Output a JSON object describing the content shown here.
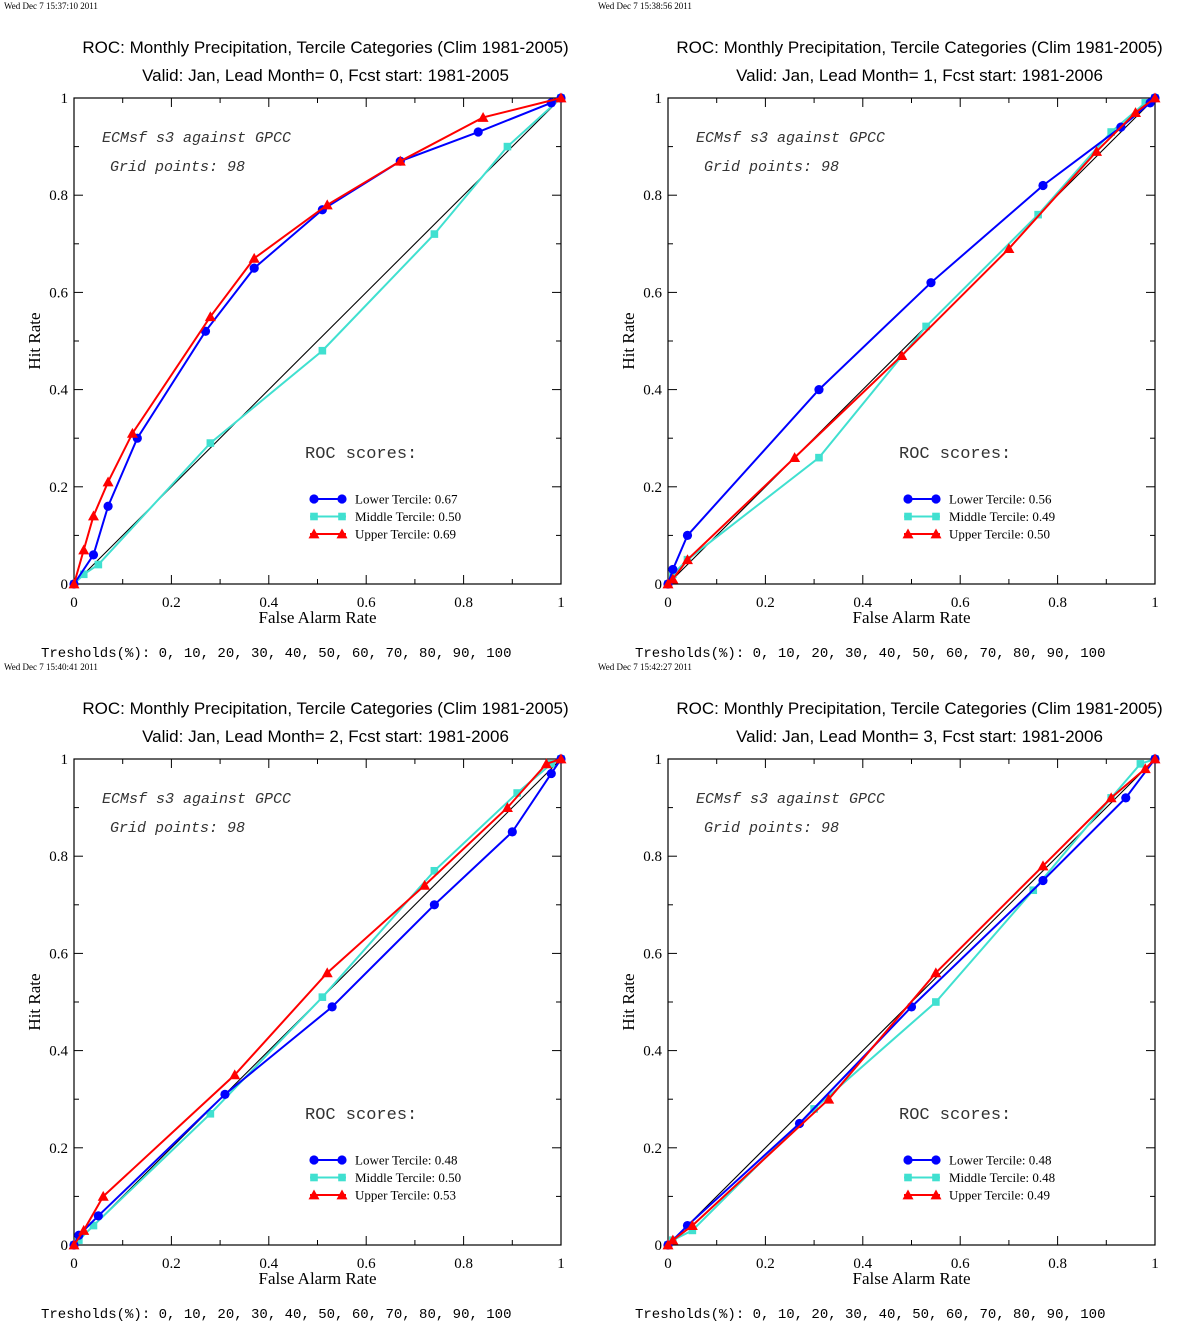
{
  "common": {
    "xlabel": "False Alarm Rate",
    "ylabel": "Hit Rate",
    "note_line1": "ECMsf s3 against GPCC",
    "note_line2": "Grid points:   98",
    "roc_heading": "ROC scores:",
    "thresholds": "Tresholds(%): 0, 10, 20, 30, 40, 50, 60, 70, 80, 90, 100",
    "xticks": [
      "0",
      "0.2",
      "0.4",
      "0.6",
      "0.8",
      "1"
    ],
    "yticks": [
      "0",
      "0.2",
      "0.4",
      "0.6",
      "0.8",
      "1"
    ],
    "colors": {
      "lower": "#0000ff",
      "middle": "#40e0d0",
      "upper": "#ff0000",
      "diagonal": "#000000"
    },
    "markers": {
      "lower": "circle",
      "middle": "square",
      "upper": "triangle"
    }
  },
  "chart_data": [
    {
      "type": "line",
      "timestamp": "Wed Dec  7 15:37:10 2011",
      "title": "ROC: Monthly Precipitation, Tercile Categories (Clim 1981-2005)",
      "subtitle": "Valid: Jan, Lead Month= 0, Fcst start: 1981-2005",
      "xlabel": "False Alarm Rate",
      "ylabel": "Hit Rate",
      "xlim": [
        0,
        1
      ],
      "ylim": [
        0,
        1
      ],
      "legend": [
        {
          "label": "Lower Tercile: 0.67",
          "key": "lower"
        },
        {
          "label": "Middle Tercile: 0.50",
          "key": "middle"
        },
        {
          "label": "Upper Tercile: 0.69",
          "key": "upper"
        }
      ],
      "series": [
        {
          "key": "lower",
          "points": [
            [
              0,
              0
            ],
            [
              0.04,
              0.06
            ],
            [
              0.07,
              0.16
            ],
            [
              0.13,
              0.3
            ],
            [
              0.27,
              0.52
            ],
            [
              0.37,
              0.65
            ],
            [
              0.51,
              0.77
            ],
            [
              0.67,
              0.87
            ],
            [
              0.83,
              0.93
            ],
            [
              0.98,
              0.99
            ],
            [
              1,
              1
            ]
          ]
        },
        {
          "key": "middle",
          "points": [
            [
              0,
              0
            ],
            [
              0.02,
              0.02
            ],
            [
              0.05,
              0.04
            ],
            [
              0.28,
              0.29
            ],
            [
              0.51,
              0.48
            ],
            [
              0.74,
              0.72
            ],
            [
              0.89,
              0.9
            ],
            [
              1,
              1
            ]
          ]
        },
        {
          "key": "upper",
          "points": [
            [
              0,
              0
            ],
            [
              0.02,
              0.07
            ],
            [
              0.04,
              0.14
            ],
            [
              0.07,
              0.21
            ],
            [
              0.12,
              0.31
            ],
            [
              0.28,
              0.55
            ],
            [
              0.37,
              0.67
            ],
            [
              0.52,
              0.78
            ],
            [
              0.67,
              0.87
            ],
            [
              0.84,
              0.96
            ],
            [
              1,
              1
            ]
          ]
        }
      ]
    },
    {
      "type": "line",
      "timestamp": "Wed Dec  7 15:38:56 2011",
      "title": "ROC: Monthly Precipitation, Tercile Categories (Clim 1981-2005)",
      "subtitle": "Valid: Jan, Lead Month= 1, Fcst start: 1981-2006",
      "xlabel": "False Alarm Rate",
      "ylabel": "Hit Rate",
      "xlim": [
        0,
        1
      ],
      "ylim": [
        0,
        1
      ],
      "legend": [
        {
          "label": "Lower Tercile: 0.56",
          "key": "lower"
        },
        {
          "label": "Middle Tercile: 0.49",
          "key": "middle"
        },
        {
          "label": "Upper Tercile: 0.50",
          "key": "upper"
        }
      ],
      "series": [
        {
          "key": "lower",
          "points": [
            [
              0,
              0
            ],
            [
              0.01,
              0.03
            ],
            [
              0.04,
              0.1
            ],
            [
              0.31,
              0.4
            ],
            [
              0.54,
              0.62
            ],
            [
              0.77,
              0.82
            ],
            [
              0.93,
              0.94
            ],
            [
              0.99,
              0.99
            ],
            [
              1,
              1
            ]
          ]
        },
        {
          "key": "middle",
          "points": [
            [
              0,
              0
            ],
            [
              0.01,
              0.02
            ],
            [
              0.04,
              0.05
            ],
            [
              0.31,
              0.26
            ],
            [
              0.53,
              0.53
            ],
            [
              0.76,
              0.76
            ],
            [
              0.91,
              0.93
            ],
            [
              0.98,
              0.99
            ],
            [
              1,
              1
            ]
          ]
        },
        {
          "key": "upper",
          "points": [
            [
              0,
              0
            ],
            [
              0.01,
              0.01
            ],
            [
              0.04,
              0.05
            ],
            [
              0.26,
              0.26
            ],
            [
              0.48,
              0.47
            ],
            [
              0.7,
              0.69
            ],
            [
              0.88,
              0.89
            ],
            [
              0.96,
              0.97
            ],
            [
              1,
              1
            ]
          ]
        }
      ]
    },
    {
      "type": "line",
      "timestamp": "Wed Dec  7 15:40:41 2011",
      "title": "ROC: Monthly Precipitation, Tercile Categories (Clim 1981-2005)",
      "subtitle": "Valid: Jan, Lead Month= 2, Fcst start: 1981-2006",
      "xlabel": "False Alarm Rate",
      "ylabel": "Hit Rate",
      "xlim": [
        0,
        1
      ],
      "ylim": [
        0,
        1
      ],
      "legend": [
        {
          "label": "Lower Tercile: 0.48",
          "key": "lower"
        },
        {
          "label": "Middle Tercile: 0.50",
          "key": "middle"
        },
        {
          "label": "Upper Tercile: 0.53",
          "key": "upper"
        }
      ],
      "series": [
        {
          "key": "lower",
          "points": [
            [
              0,
              0
            ],
            [
              0.01,
              0.02
            ],
            [
              0.05,
              0.06
            ],
            [
              0.31,
              0.31
            ],
            [
              0.53,
              0.49
            ],
            [
              0.74,
              0.7
            ],
            [
              0.9,
              0.85
            ],
            [
              0.98,
              0.97
            ],
            [
              1,
              1
            ]
          ]
        },
        {
          "key": "middle",
          "points": [
            [
              0,
              0
            ],
            [
              0.01,
              0.01
            ],
            [
              0.04,
              0.04
            ],
            [
              0.28,
              0.27
            ],
            [
              0.51,
              0.51
            ],
            [
              0.74,
              0.77
            ],
            [
              0.91,
              0.93
            ],
            [
              0.98,
              0.99
            ],
            [
              1,
              1
            ]
          ]
        },
        {
          "key": "upper",
          "points": [
            [
              0,
              0
            ],
            [
              0.02,
              0.03
            ],
            [
              0.06,
              0.1
            ],
            [
              0.33,
              0.35
            ],
            [
              0.52,
              0.56
            ],
            [
              0.72,
              0.74
            ],
            [
              0.89,
              0.9
            ],
            [
              0.97,
              0.99
            ],
            [
              1,
              1
            ]
          ]
        }
      ]
    },
    {
      "type": "line",
      "timestamp": "Wed Dec  7 15:42:27 2011",
      "title": "ROC: Monthly Precipitation, Tercile Categories (Clim 1981-2005)",
      "subtitle": "Valid: Jan, Lead Month= 3, Fcst start: 1981-2006",
      "xlabel": "False Alarm Rate",
      "ylabel": "Hit Rate",
      "xlim": [
        0,
        1
      ],
      "ylim": [
        0,
        1
      ],
      "legend": [
        {
          "label": "Lower Tercile: 0.48",
          "key": "lower"
        },
        {
          "label": "Middle Tercile: 0.48",
          "key": "middle"
        },
        {
          "label": "Upper Tercile: 0.49",
          "key": "upper"
        }
      ],
      "series": [
        {
          "key": "lower",
          "points": [
            [
              0,
              0
            ],
            [
              0.04,
              0.04
            ],
            [
              0.27,
              0.25
            ],
            [
              0.5,
              0.49
            ],
            [
              0.77,
              0.75
            ],
            [
              0.94,
              0.92
            ],
            [
              1,
              1
            ]
          ]
        },
        {
          "key": "middle",
          "points": [
            [
              0,
              0
            ],
            [
              0.01,
              0.01
            ],
            [
              0.05,
              0.03
            ],
            [
              0.3,
              0.28
            ],
            [
              0.55,
              0.5
            ],
            [
              0.75,
              0.73
            ],
            [
              0.91,
              0.92
            ],
            [
              0.97,
              0.99
            ],
            [
              1,
              1
            ]
          ]
        },
        {
          "key": "upper",
          "points": [
            [
              0,
              0
            ],
            [
              0.01,
              0.01
            ],
            [
              0.05,
              0.04
            ],
            [
              0.33,
              0.3
            ],
            [
              0.55,
              0.56
            ],
            [
              0.77,
              0.78
            ],
            [
              0.91,
              0.92
            ],
            [
              0.98,
              0.98
            ],
            [
              1,
              1
            ]
          ]
        }
      ]
    }
  ]
}
